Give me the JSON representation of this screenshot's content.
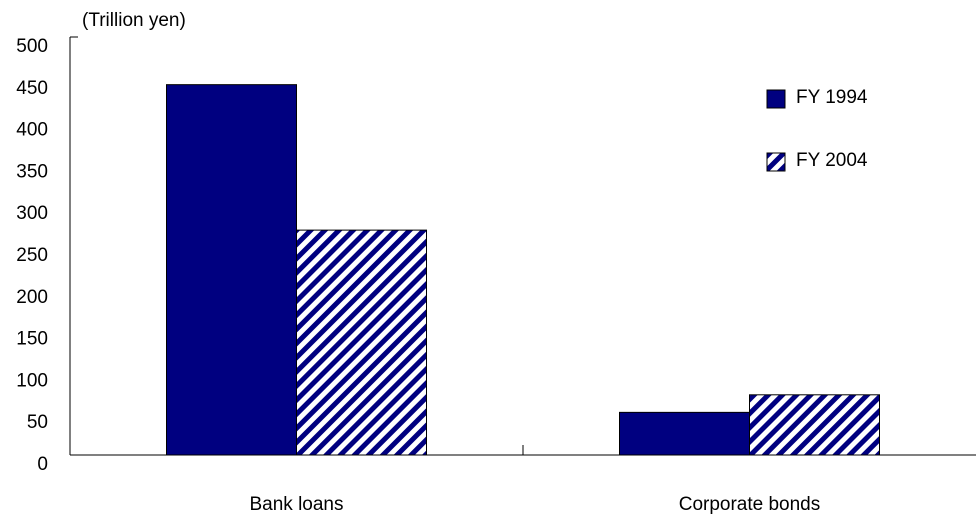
{
  "chart_data": {
    "type": "bar",
    "y_label": "(Trillion yen)",
    "categories": [
      "Bank loans",
      "Corporate bonds"
    ],
    "series": [
      {
        "name": "FY 1994",
        "color": "#000080",
        "pattern": "solid",
        "values": [
          443,
          51
        ]
      },
      {
        "name": "FY 2004",
        "color": "#000080",
        "pattern": "hatch",
        "values": [
          269,
          72
        ]
      }
    ],
    "ylim": [
      0,
      500
    ],
    "yticks": [
      0,
      50,
      100,
      150,
      200,
      250,
      300,
      350,
      400,
      450,
      500
    ],
    "grid": false,
    "legend": "upper right"
  }
}
